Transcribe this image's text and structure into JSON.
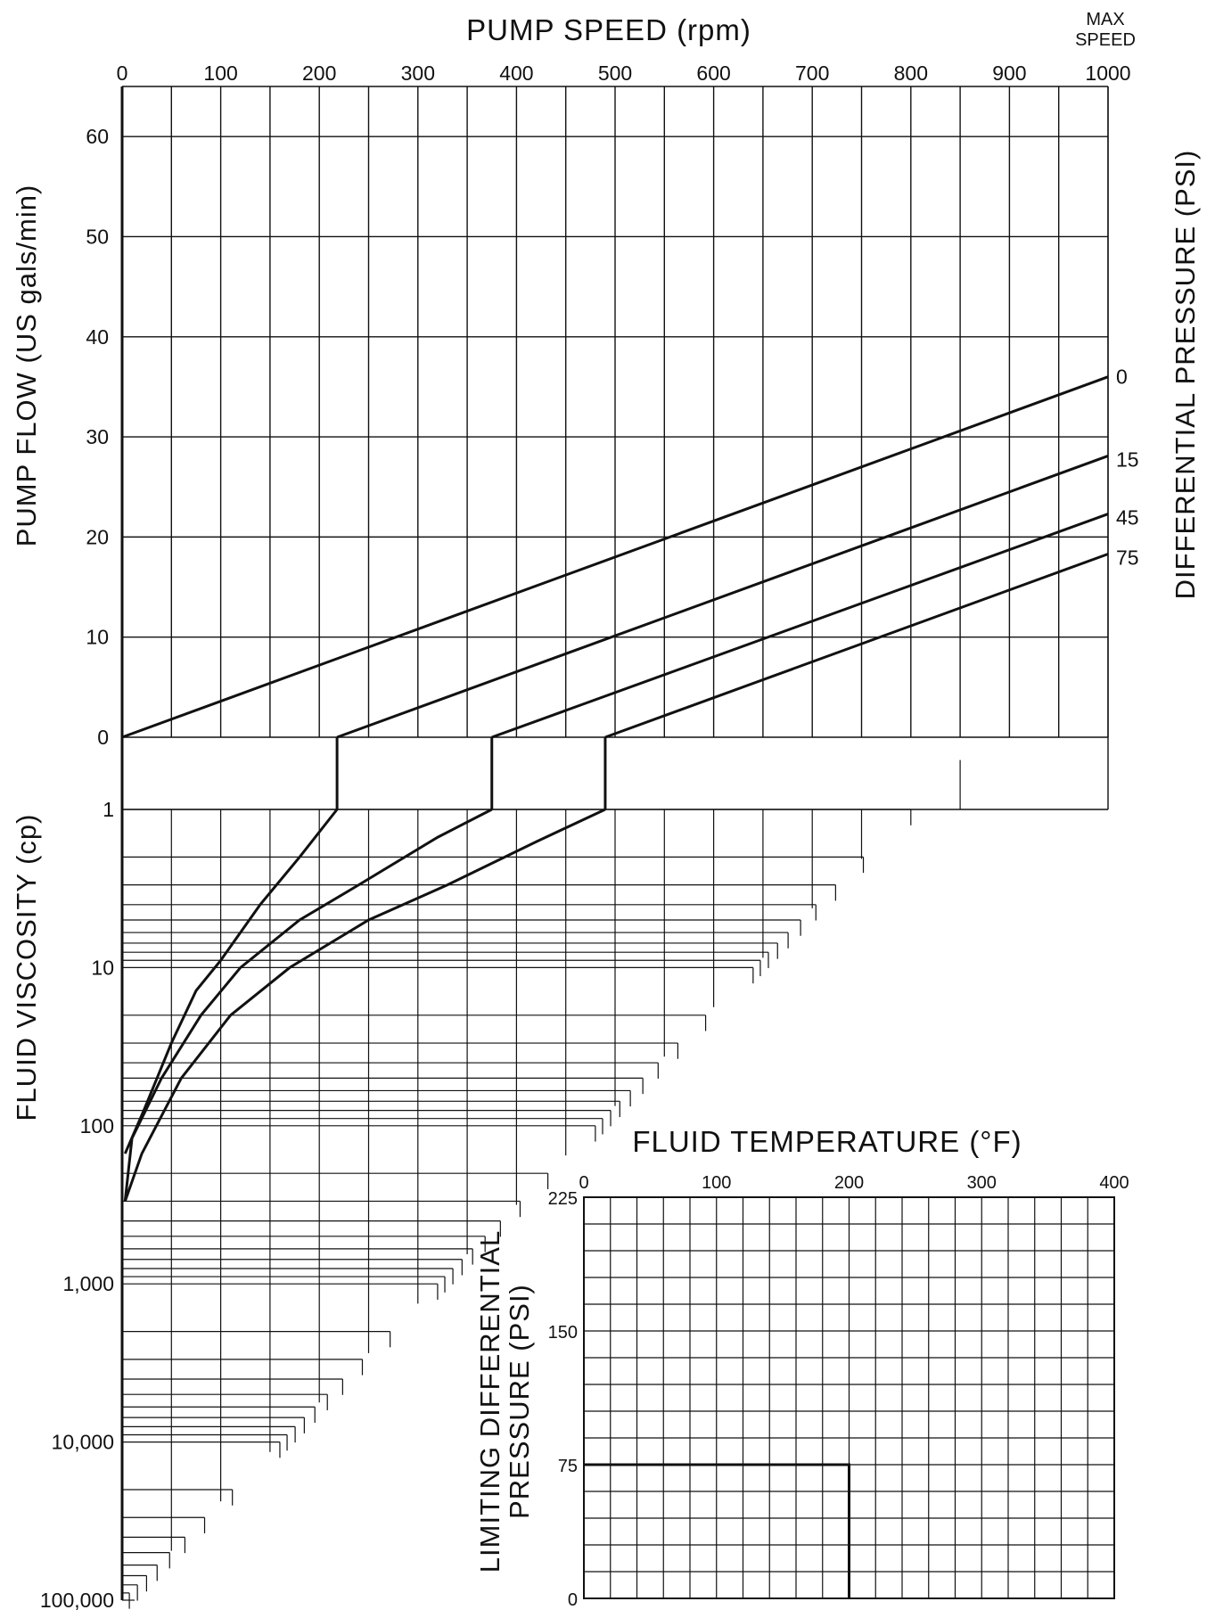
{
  "colors": {
    "ink": "#111111",
    "background": "#ffffff"
  },
  "chart_data": [
    {
      "type": "line",
      "panel": "pump-curves",
      "title": "PUMP SPEED (rpm)",
      "max_speed_label": "MAX SPEED",
      "xlabel": "PUMP SPEED (rpm)",
      "ylabel": "PUMP FLOW (US gals/min)",
      "y2label": "DIFFERENTIAL PRESSURE (PSI)",
      "xlim": [
        0,
        1000
      ],
      "ylim": [
        0,
        65
      ],
      "x_ticks": [
        "0",
        "100",
        "200",
        "300",
        "400",
        "500",
        "600",
        "700",
        "800",
        "900",
        "1000"
      ],
      "y_ticks": [
        "0",
        "10",
        "20",
        "30",
        "40",
        "50",
        "60"
      ],
      "grid": true,
      "series": [
        {
          "name": "0",
          "x": [
            0,
            1000
          ],
          "y": [
            0,
            36
          ]
        },
        {
          "name": "15",
          "x": [
            218,
            1000
          ],
          "y": [
            0,
            28.1
          ]
        },
        {
          "name": "45",
          "x": [
            375,
            1000
          ],
          "y": [
            0,
            22.3
          ]
        },
        {
          "name": "75",
          "x": [
            490,
            1000
          ],
          "y": [
            0,
            18.3
          ]
        }
      ]
    },
    {
      "type": "line",
      "panel": "viscosity",
      "ylabel": "FLUID VISCOSITY (cp)",
      "yscale": "log",
      "ylim": [
        1,
        100000
      ],
      "y_ticks": [
        "1",
        "10",
        "100",
        "1,000",
        "10,000",
        "100,000"
      ],
      "curves": [
        {
          "pressure": "15",
          "x": [
            218,
            180,
            140,
            100,
            75,
            50,
            22,
            3
          ],
          "y": [
            1,
            2,
            4,
            9,
            14,
            30,
            80,
            150
          ]
        },
        {
          "pressure": "45",
          "x": [
            375,
            320,
            240,
            180,
            120,
            80,
            40,
            10,
            3
          ],
          "y": [
            1,
            1.5,
            3,
            5,
            10,
            20,
            50,
            120,
            300
          ]
        },
        {
          "pressure": "75",
          "x": [
            490,
            420,
            330,
            250,
            170,
            110,
            60,
            20,
            3
          ],
          "y": [
            1,
            1.6,
            3,
            5,
            10,
            20,
            50,
            150,
            300
          ]
        }
      ]
    },
    {
      "type": "line",
      "panel": "limiting-pressure",
      "xlabel": "FLUID TEMPERATURE (°F)",
      "ylabel_line1": "LIMITING DIFFERENTIAL",
      "ylabel_line2": "PRESSURE (PSI)",
      "xlim": [
        0,
        400
      ],
      "ylim": [
        0,
        225
      ],
      "x_ticks": [
        "0",
        "100",
        "200",
        "300",
        "400"
      ],
      "y_ticks": [
        "0",
        "75",
        "150",
        "225"
      ],
      "grid": true,
      "series": [
        {
          "name": "",
          "x": [
            0,
            200,
            200
          ],
          "y": [
            75,
            75,
            0
          ]
        }
      ]
    }
  ]
}
